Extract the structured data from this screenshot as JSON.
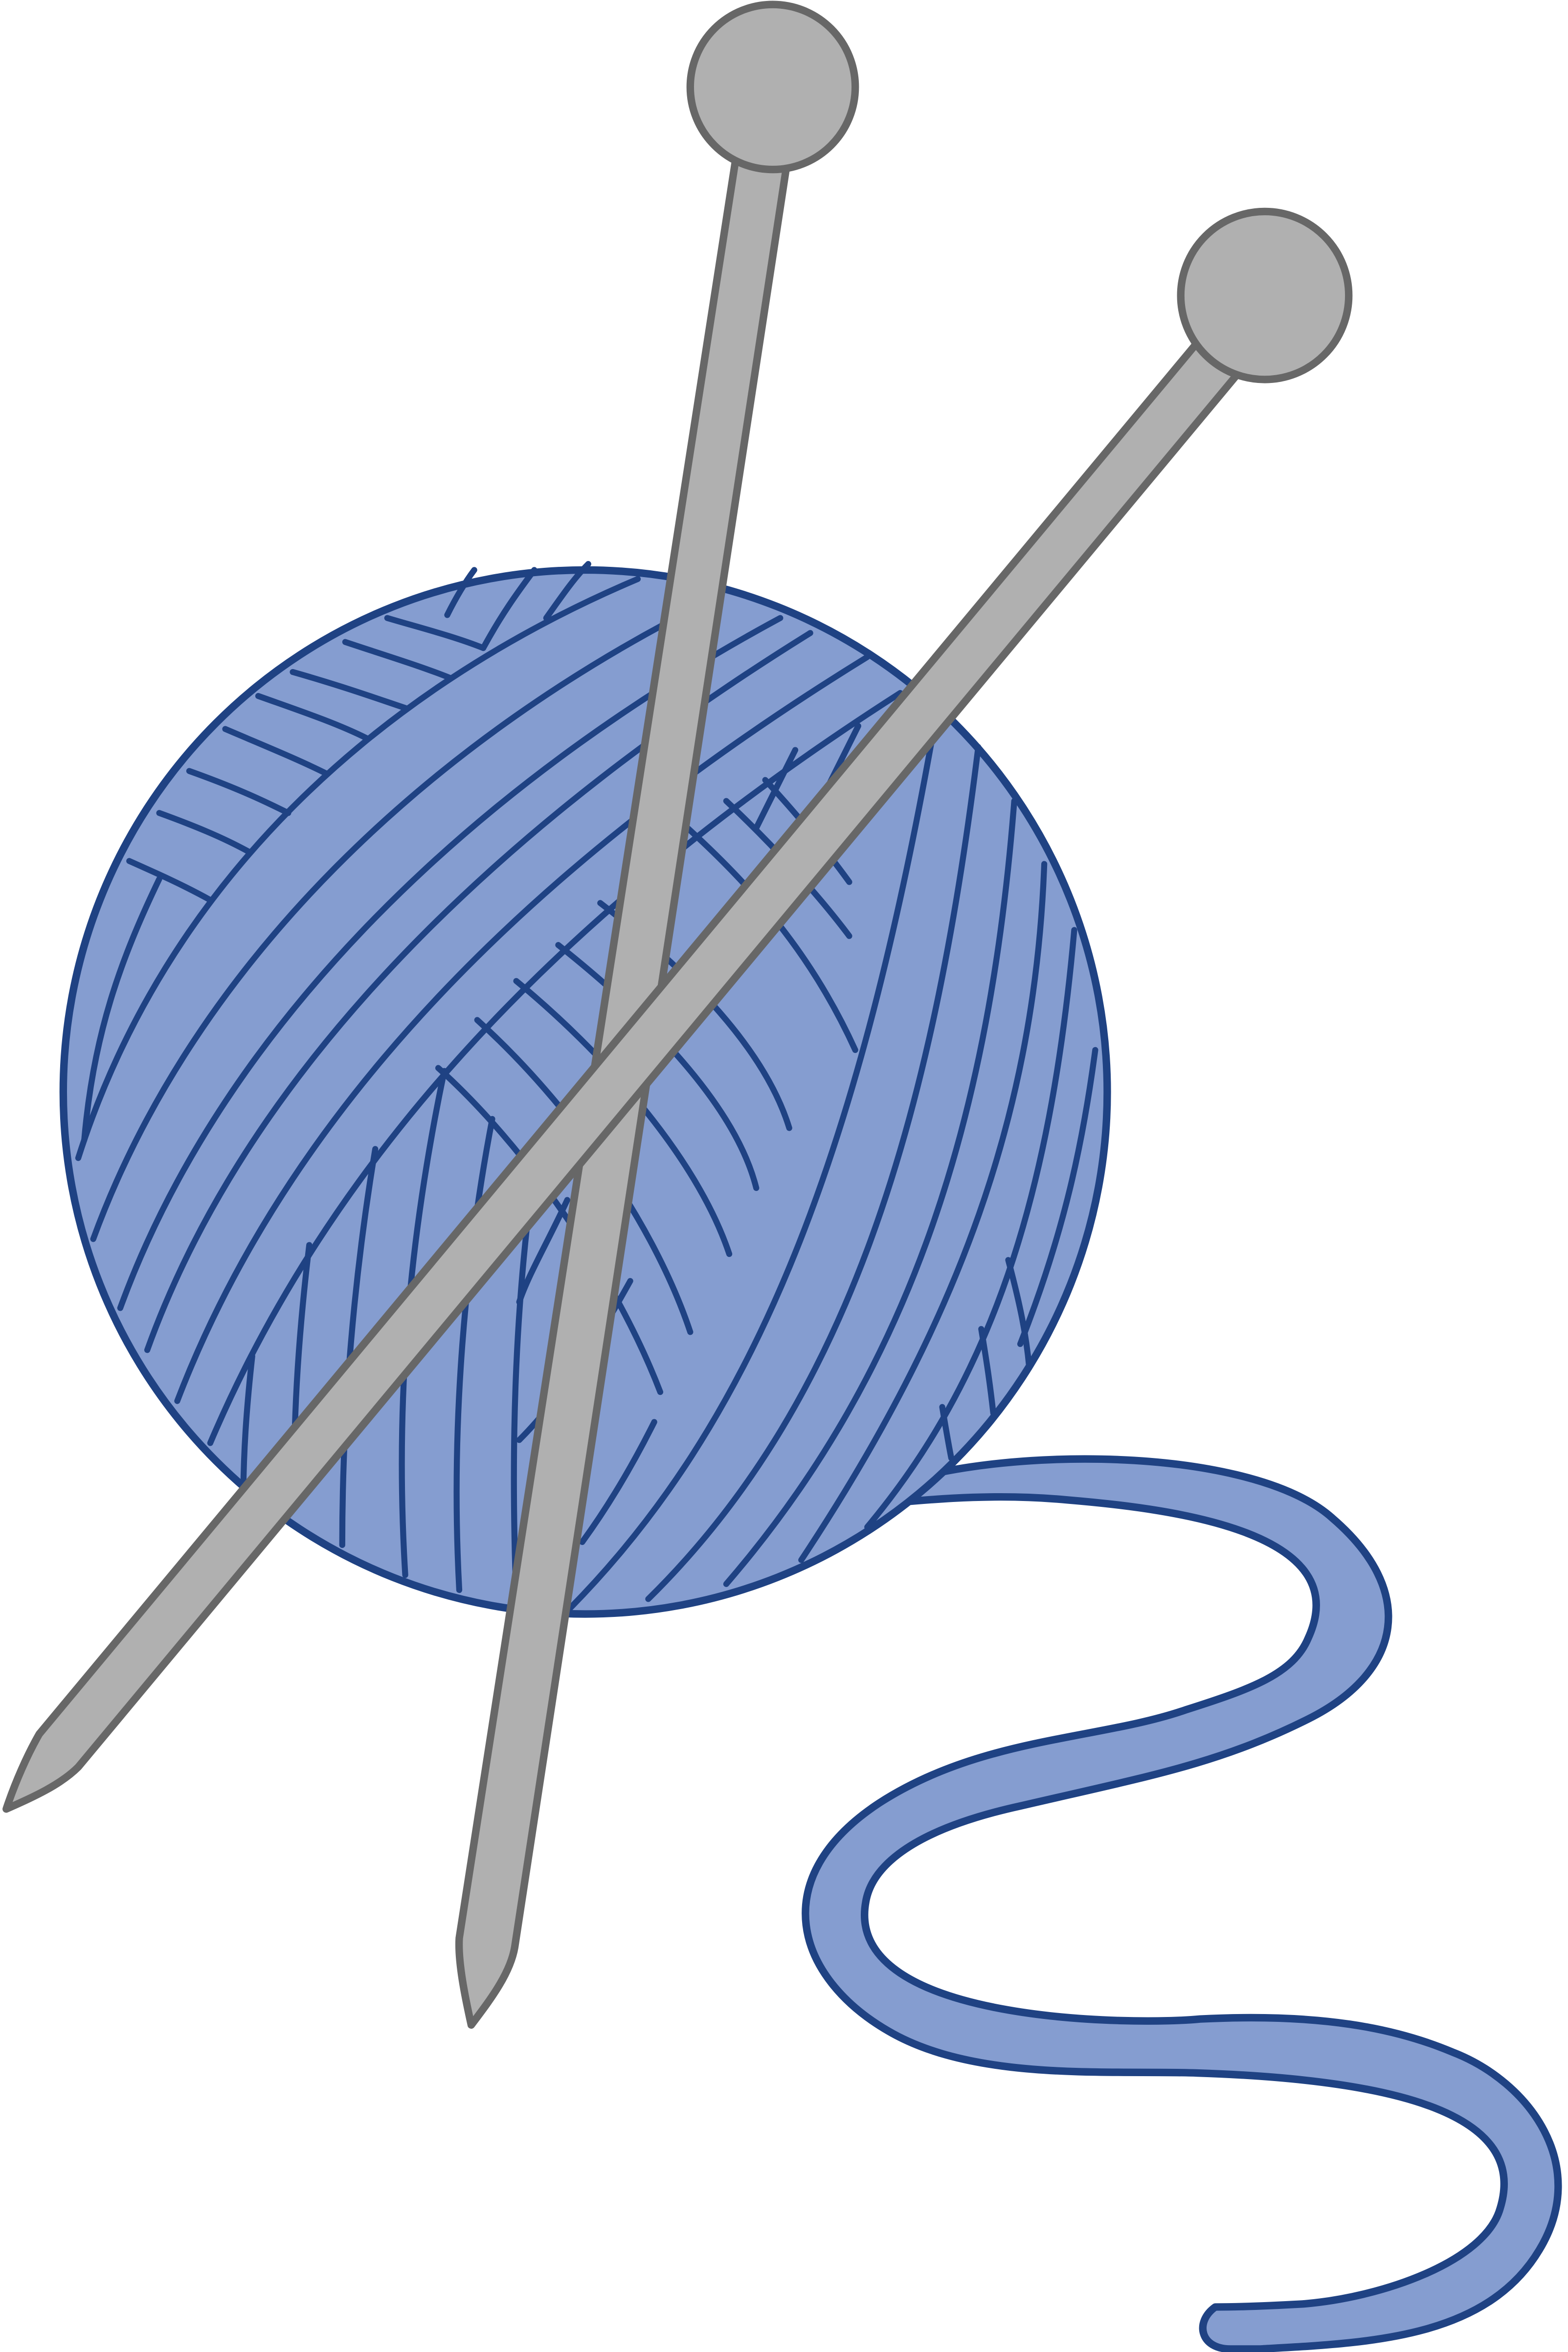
{
  "illustration": {
    "subject": "yarn-ball-with-knitting-needles",
    "icons": [
      "yarn-ball-icon",
      "knitting-needle-icon",
      "yarn-strand-icon"
    ]
  },
  "colors": {
    "yarn_fill": "#859dd0",
    "yarn_outline": "#1f4283",
    "needle_fill": "#b0b0b0",
    "needle_outline": "#676767",
    "background": "#ffffff"
  }
}
